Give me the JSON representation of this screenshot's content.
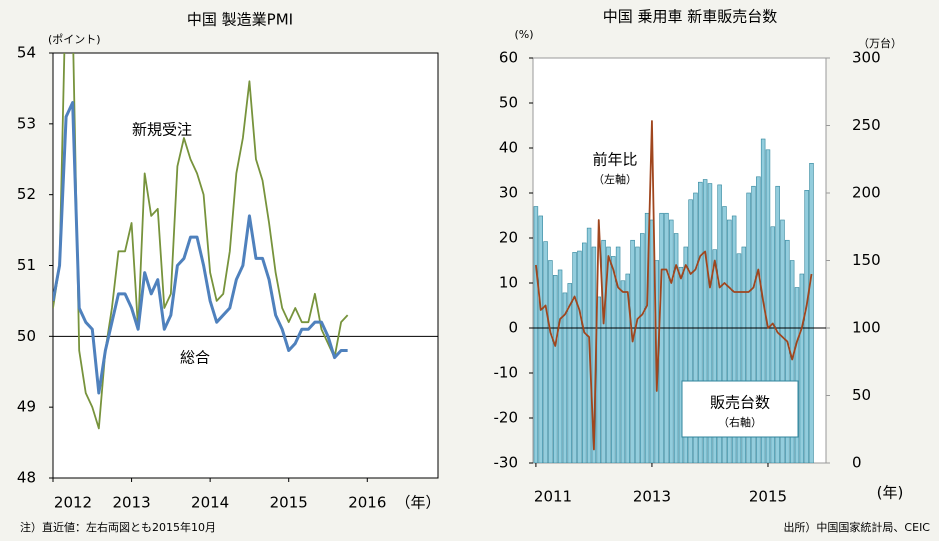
{
  "chart_data": [
    {
      "type": "line",
      "title": "中国 製造業PMI",
      "y_label": "(ポイント)",
      "x_unit": "（年）",
      "x": [
        2012,
        2012.0833,
        2012.1667,
        2012.25,
        2012.3333,
        2012.4167,
        2012.5,
        2012.5833,
        2012.6667,
        2012.75,
        2012.8333,
        2012.9167,
        2013,
        2013.0833,
        2013.1667,
        2013.25,
        2013.3333,
        2013.4167,
        2013.5,
        2013.5833,
        2013.6667,
        2013.75,
        2013.8333,
        2013.9167,
        2014,
        2014.0833,
        2014.1667,
        2014.25,
        2014.3333,
        2014.4167,
        2014.5,
        2014.5833,
        2014.6667,
        2014.75,
        2014.8333,
        2014.9167,
        2015,
        2015.0833,
        2015.1667,
        2015.25,
        2015.3333,
        2015.4167,
        2015.5,
        2015.5833,
        2015.6667,
        2015.75
      ],
      "xlim": [
        2012,
        2016.9
      ],
      "xticks": [
        2012,
        2013,
        2014,
        2015,
        2016
      ],
      "ylim": [
        48,
        54
      ],
      "yticks": [
        48,
        49,
        50,
        51,
        52,
        53,
        54
      ],
      "reference_line": 50,
      "series": [
        {
          "name": "新規受注",
          "color": "#77933c",
          "values": [
            50.4,
            51.0,
            55.1,
            54.5,
            49.8,
            49.2,
            49.0,
            48.7,
            49.8,
            50.4,
            51.2,
            51.2,
            51.6,
            50.1,
            52.3,
            51.7,
            51.8,
            50.4,
            50.6,
            52.4,
            52.8,
            52.5,
            52.3,
            52.0,
            50.9,
            50.5,
            50.6,
            51.2,
            52.3,
            52.8,
            53.6,
            52.5,
            52.2,
            51.6,
            50.9,
            50.4,
            50.2,
            50.4,
            50.2,
            50.2,
            50.6,
            50.1,
            49.9,
            49.7,
            50.2,
            50.3
          ]
        },
        {
          "name": "総合",
          "color": "#4f81bd",
          "values": [
            50.5,
            51.0,
            53.1,
            53.3,
            50.4,
            50.2,
            50.1,
            49.2,
            49.8,
            50.2,
            50.6,
            50.6,
            50.4,
            50.1,
            50.9,
            50.6,
            50.8,
            50.1,
            50.3,
            51.0,
            51.1,
            51.4,
            51.4,
            51.0,
            50.5,
            50.2,
            50.3,
            50.4,
            50.8,
            51.0,
            51.7,
            51.1,
            51.1,
            50.8,
            50.3,
            50.1,
            49.8,
            49.9,
            50.1,
            50.1,
            50.2,
            50.2,
            50.0,
            49.7,
            49.8,
            49.8
          ]
        }
      ]
    },
    {
      "type": "bar_line",
      "title": "中国 乗用車 新車販売台数",
      "y_label": "(%)",
      "y2_label": "（万台）",
      "x_unit": "(年)",
      "x": [
        2011,
        2011.0833,
        2011.1667,
        2011.25,
        2011.3333,
        2011.4167,
        2011.5,
        2011.5833,
        2011.6667,
        2011.75,
        2011.8333,
        2011.9167,
        2012,
        2012.0833,
        2012.1667,
        2012.25,
        2012.3333,
        2012.4167,
        2012.5,
        2012.5833,
        2012.6667,
        2012.75,
        2012.8333,
        2012.9167,
        2013,
        2013.0833,
        2013.1667,
        2013.25,
        2013.3333,
        2013.4167,
        2013.5,
        2013.5833,
        2013.6667,
        2013.75,
        2013.8333,
        2013.9167,
        2014,
        2014.0833,
        2014.1667,
        2014.25,
        2014.3333,
        2014.4167,
        2014.5,
        2014.5833,
        2014.6667,
        2014.75,
        2014.8333,
        2014.9167,
        2015,
        2015.0833,
        2015.1667,
        2015.25,
        2015.3333,
        2015.4167,
        2015.5,
        2015.5833,
        2015.6667,
        2015.75
      ],
      "xlim": [
        2010.95,
        2016
      ],
      "xticks": [
        2011,
        2013,
        2015
      ],
      "ylim": [
        -30,
        60
      ],
      "yticks": [
        -30,
        -20,
        -10,
        0,
        10,
        20,
        30,
        40,
        50,
        60
      ],
      "y2lim": [
        0,
        300
      ],
      "y2ticks": [
        0,
        50,
        100,
        150,
        200,
        250,
        300
      ],
      "y2_color": "#31859c",
      "reference_line": 0,
      "series": [
        {
          "name": "販売台数",
          "axis_note": "（右軸）",
          "kind": "bar",
          "axis": "y2",
          "color": "#93cddd",
          "edge_color": "#31859c",
          "values": [
            190,
            183,
            164,
            150,
            139,
            143,
            126,
            133,
            156,
            157,
            163,
            174,
            160,
            123,
            165,
            160,
            153,
            160,
            135,
            140,
            165,
            160,
            170,
            185,
            180,
            150,
            185,
            185,
            180,
            170,
            145,
            160,
            195,
            200,
            208,
            210,
            207,
            158,
            206,
            190,
            180,
            183,
            155,
            160,
            200,
            205,
            212,
            240,
            232,
            175,
            205,
            180,
            165,
            150,
            130,
            140,
            202,
            222
          ]
        },
        {
          "name": "前年比",
          "axis_note": "（左軸）",
          "kind": "line",
          "color": "#a0461e",
          "values": [
            14,
            4,
            5,
            -1,
            -4,
            2,
            3,
            5,
            7,
            4,
            -1,
            -2,
            -27,
            24,
            1,
            16,
            13,
            9,
            8,
            8,
            -3,
            2,
            3,
            5,
            46,
            -14,
            13,
            13,
            10,
            14,
            11,
            14,
            12,
            13,
            16,
            17,
            9,
            15,
            9,
            10,
            9,
            8,
            8,
            8,
            8,
            9,
            13,
            6,
            0,
            1,
            -1,
            -2,
            -3,
            -7,
            -3,
            0,
            5,
            12
          ]
        }
      ]
    }
  ],
  "notes": {
    "footnote": "注）直近値：左右両図とも2015年10月",
    "source": "出所）中国国家統計局、CEIC"
  }
}
